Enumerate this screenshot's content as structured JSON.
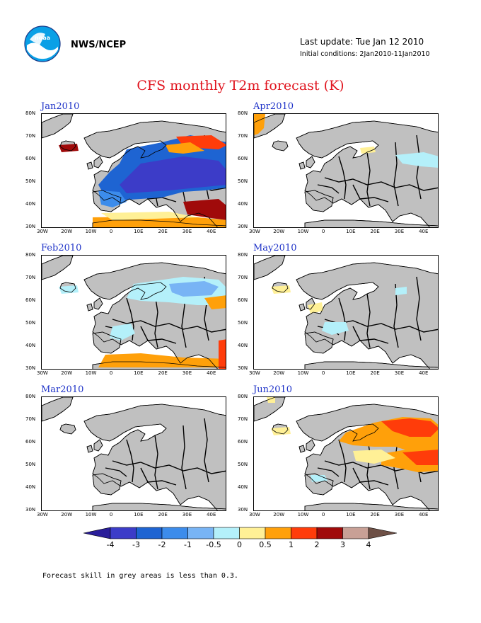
{
  "header": {
    "org": "NWS/NCEP",
    "last_update": "Last update: Tue Jan 12 2010",
    "initial_conditions": "Initial conditions: 2Jan2010-11Jan2010",
    "logo_text": "noaa"
  },
  "title": "CFS monthly T2m forecast (K)",
  "axes": {
    "lat_labels": [
      "80N",
      "70N",
      "60N",
      "50N",
      "40N",
      "30N"
    ],
    "lon_labels": [
      "30W",
      "20W",
      "10W",
      "0",
      "10E",
      "20E",
      "30E",
      "40E"
    ]
  },
  "panels": [
    {
      "id": "jan",
      "title": "Jan2010"
    },
    {
      "id": "apr",
      "title": "Apr2010"
    },
    {
      "id": "feb",
      "title": "Feb2010"
    },
    {
      "id": "may",
      "title": "May2010"
    },
    {
      "id": "mar",
      "title": "Mar2010"
    },
    {
      "id": "jun",
      "title": "Jun2010"
    }
  ],
  "colorbar": {
    "labels": [
      "-4",
      "-3",
      "-2",
      "-1",
      "-0.5",
      "0",
      "0.5",
      "1",
      "2",
      "3",
      "4"
    ],
    "colors": [
      "#2a1e9a",
      "#3c3cc8",
      "#1e64d2",
      "#3c8ceb",
      "#78b4f5",
      "#b4f0fa",
      "#fff096",
      "#ffa00a",
      "#ff3c0a",
      "#a00a0a",
      "#c8a096",
      "#6e5046"
    ]
  },
  "colors": {
    "grey": "#c0c0c0",
    "title_red": "#e0141e",
    "panel_title_blue": "#1f33c8"
  },
  "footer": "Forecast skill in grey areas is less than 0.3."
}
